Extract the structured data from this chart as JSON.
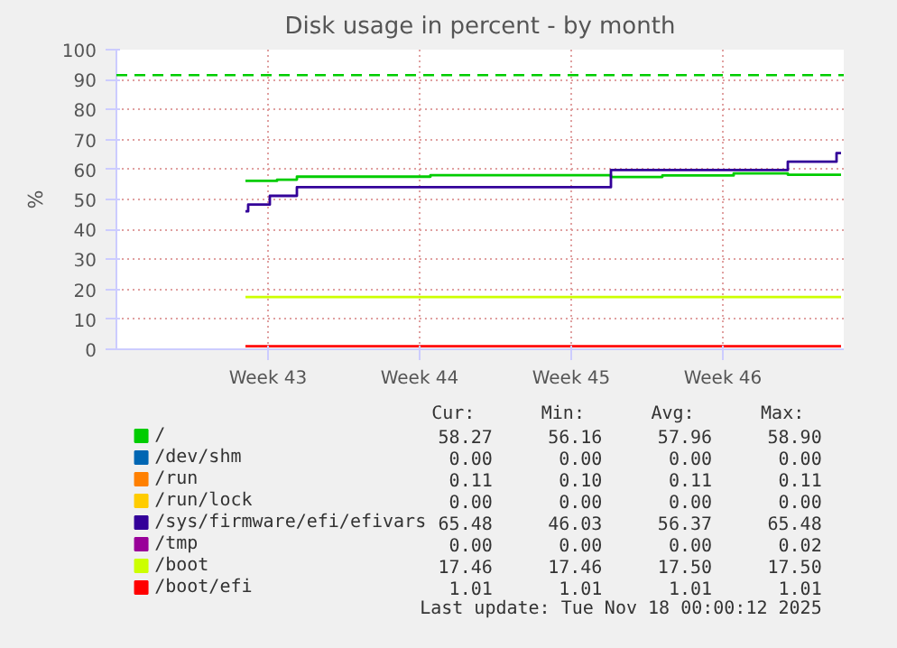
{
  "chart_data": {
    "type": "step",
    "title": "Disk usage in percent - by month",
    "ylabel": "%",
    "xlim": [
      "2025-10-13",
      "2025-11-15T14:00"
    ],
    "xticks": [
      {
        "value": "2025-10-20",
        "label": "Week 43"
      },
      {
        "value": "2025-10-27",
        "label": "Week 44"
      },
      {
        "value": "2025-11-03",
        "label": "Week 45"
      },
      {
        "value": "2025-11-10",
        "label": "Week 46"
      }
    ],
    "ylim": [
      0,
      100
    ],
    "yticks": [
      0,
      10,
      20,
      30,
      40,
      50,
      60,
      70,
      80,
      90,
      100
    ],
    "grid": true,
    "legend": "bottom",
    "line_style": "solid",
    "marker": "none",
    "series": [
      {
        "name": "/",
        "color": "#00cc00",
        "x": [
          "2025-10-18T23:00",
          "2025-10-20T10:00",
          "2025-10-21T08:00",
          "2025-10-27T12:00",
          "2025-11-04T20:00",
          "2025-11-07T05:00",
          "2025-11-10T12:00",
          "2025-11-13T00:00",
          "2025-11-15T11:00"
        ],
        "values": [
          56.2,
          56.6,
          57.6,
          58.1,
          57.5,
          58.0,
          58.7,
          58.27,
          58.27
        ]
      },
      {
        "name": "/dev/shm",
        "color": "#0066b3"
      },
      {
        "name": "/run",
        "color": "#ff8000"
      },
      {
        "name": "/run/lock",
        "color": "#ffcc00"
      },
      {
        "name": "/sys/firmware/efi/efivars",
        "color": "#330099",
        "x": [
          "2025-10-18T23:00",
          "2025-10-19T02:00",
          "2025-10-20T02:00",
          "2025-10-21T08:00",
          "2025-11-04T20:00",
          "2025-11-13T00:00",
          "2025-11-15T06:00",
          "2025-11-15T11:00"
        ],
        "values": [
          46.03,
          48.3,
          51.2,
          54.1,
          59.8,
          62.6,
          65.48,
          65.48
        ]
      },
      {
        "name": "/tmp",
        "color": "#990099"
      },
      {
        "name": "/boot",
        "color": "#ccff00",
        "x": [
          "2025-10-18T23:00",
          "2025-11-15T11:00"
        ],
        "values": [
          17.46,
          17.46
        ]
      },
      {
        "name": "/boot/efi",
        "color": "#ff0000",
        "x": [
          "2025-10-18T23:00",
          "2025-11-15T11:00"
        ],
        "values": [
          1.01,
          1.01
        ]
      }
    ],
    "ref_lines": [
      {
        "axis": "y",
        "value": 91.5,
        "color": "#00cc00",
        "line_style": "dashed",
        "label": null
      }
    ],
    "annotations": [
      "Cur:",
      "Min:",
      "Avg:",
      "Max:",
      "58.27",
      "56.16",
      "57.96",
      "58.90",
      "0.00",
      "0.00",
      "0.00",
      "0.00",
      "0.11",
      "0.10",
      "0.11",
      "0.11",
      "0.00",
      "0.00",
      "0.00",
      "0.00",
      "65.48",
      "46.03",
      "56.37",
      "65.48",
      "0.00",
      "0.00",
      "0.00",
      "0.02",
      "17.46",
      "17.46",
      "17.50",
      "17.50",
      "1.01",
      "1.01",
      "1.01",
      "1.01",
      "Last update: Tue Nov 18 00:00:12 2025"
    ]
  }
}
